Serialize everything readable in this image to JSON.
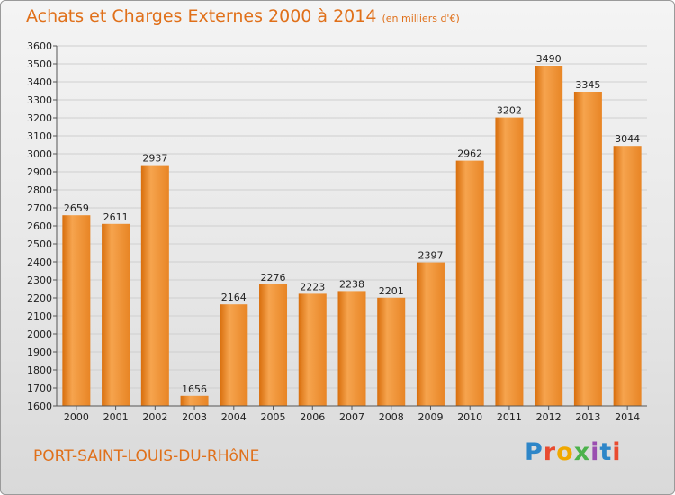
{
  "header": {
    "title": "Achats et Charges Externes 2000 à 2014",
    "subtitle": "(en milliers d'€)"
  },
  "footer": {
    "commune": "PORT-SAINT-LOUIS-DU-RHôNE",
    "logo": [
      "P",
      "r",
      "o",
      "x",
      "i",
      "t",
      "i"
    ]
  },
  "colors": {
    "bar_light": "#f6a44e",
    "bar_dark": "#d86e0c",
    "text_accent": "#e0701a",
    "grid": "#cfcfcf"
  },
  "chart_data": {
    "type": "bar",
    "title": "Achats et Charges Externes 2000 à 2014",
    "subtitle": "(en milliers d'€)",
    "categories": [
      "2000",
      "2001",
      "2002",
      "2003",
      "2004",
      "2005",
      "2006",
      "2007",
      "2008",
      "2009",
      "2010",
      "2011",
      "2012",
      "2013",
      "2014"
    ],
    "values": [
      2659,
      2611,
      2937,
      1656,
      2164,
      2276,
      2223,
      2238,
      2201,
      2397,
      2962,
      3202,
      3490,
      3345,
      3044
    ],
    "ylim": [
      1600,
      3600
    ],
    "yticks": [
      1600,
      1700,
      1800,
      1900,
      2000,
      2100,
      2200,
      2300,
      2400,
      2500,
      2600,
      2700,
      2800,
      2900,
      3000,
      3100,
      3200,
      3300,
      3400,
      3500,
      3600
    ],
    "grid": true,
    "xlabel": "",
    "ylabel": ""
  }
}
